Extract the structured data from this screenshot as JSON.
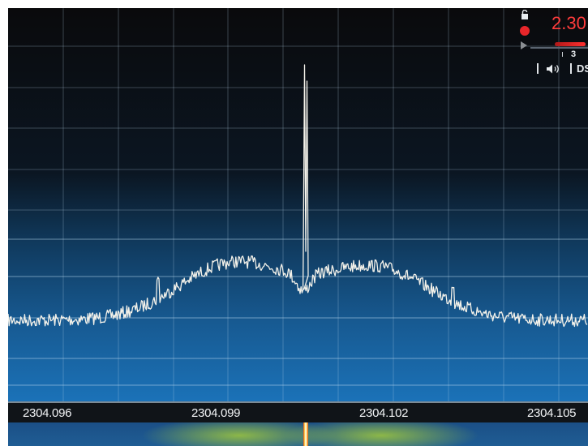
{
  "spectrum": {
    "colors": {
      "top": "#0a0a0c",
      "mid": "#0d2a45",
      "bottom": "#1b72b8",
      "grid": "#b9d9ee",
      "trace": "#f4f2ea"
    }
  },
  "frequency_axis": {
    "labels": [
      "2304.096",
      "2304.099",
      "2304.102",
      "2304.105"
    ]
  },
  "hud": {
    "frequency_readout": "2.30",
    "gain_value": "3",
    "dsp_label": "DSP",
    "icons": [
      "lock-icon",
      "record-icon",
      "play-icon",
      "volume-icon"
    ],
    "colors": {
      "readout": "#ff3c3c",
      "gain_fill": "#ff3030"
    }
  }
}
